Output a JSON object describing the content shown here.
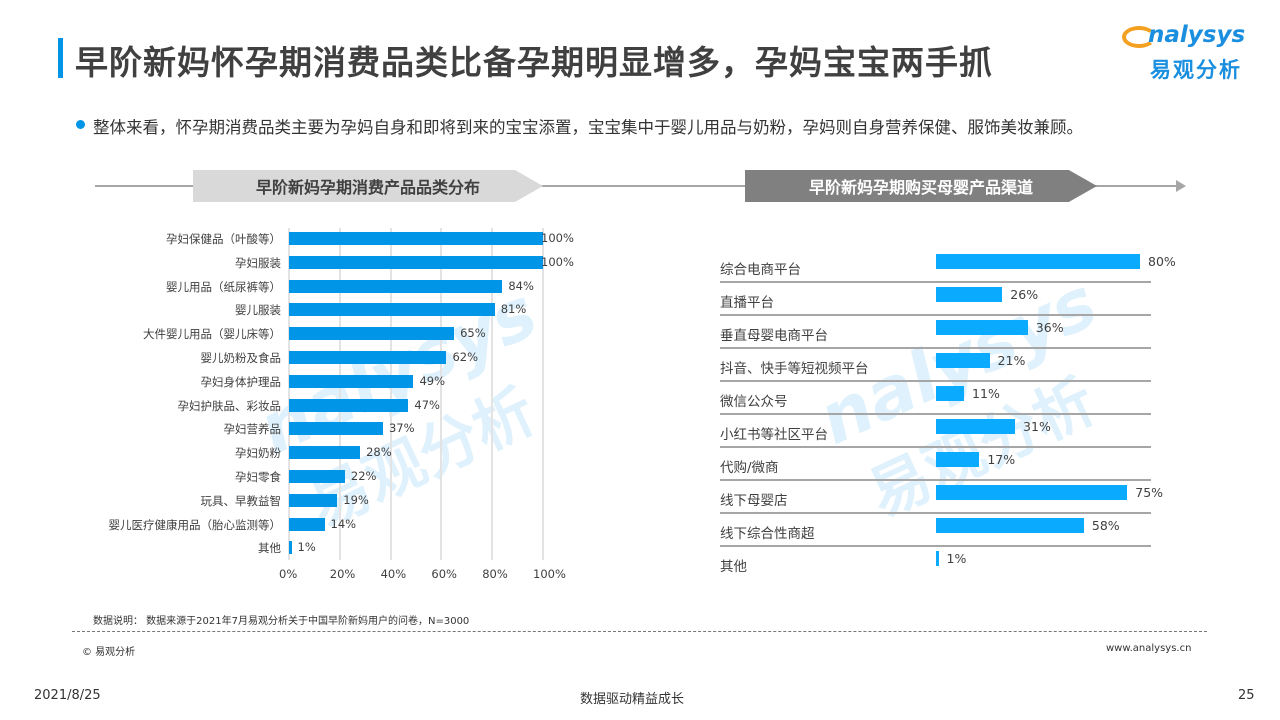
{
  "title": "早阶新妈怀孕期消费品类比备孕期明显增多，孕妈宝宝两手抓",
  "logo": {
    "en": "nalysys",
    "cn": "易观分析"
  },
  "summary": "整体来看，怀孕期消费品类主要为孕妈自身和即将到来的宝宝添置，宝宝集中于婴儿用品与奶粉，孕妈则自身营养保健、服饰美妆兼顾。",
  "watermark": {
    "en": "nalysys",
    "cn": "易观分析"
  },
  "chart_data": [
    {
      "type": "bar",
      "orientation": "horizontal",
      "title": "早阶新妈孕期消费产品品类分布",
      "color": "#0095e6",
      "categories": [
        "孕妇保健品（叶酸等）",
        "孕妇服装",
        "婴儿用品（纸尿裤等）",
        "婴儿服装",
        "大件婴儿用品（婴儿床等）",
        "婴儿奶粉及食品",
        "孕妇身体护理品",
        "孕妇护肤品、彩妆品",
        "孕妇营养品",
        "孕妇奶粉",
        "孕妇零食",
        "玩具、早教益智",
        "婴儿医疗健康用品（胎心监测等）",
        "其他"
      ],
      "values": [
        100,
        100,
        84,
        81,
        65,
        62,
        49,
        47,
        37,
        28,
        22,
        19,
        14,
        1
      ],
      "labels": [
        "100%",
        "100%",
        "84%",
        "81%",
        "65%",
        "62%",
        "49%",
        "47%",
        "37%",
        "28%",
        "22%",
        "19%",
        "14%",
        "1%"
      ],
      "xlim": [
        0,
        100
      ],
      "xticks": [
        "0%",
        "20%",
        "40%",
        "60%",
        "80%",
        "100%"
      ],
      "grid": true
    },
    {
      "type": "bar",
      "orientation": "horizontal",
      "title": "早阶新妈孕期购买母婴产品渠道",
      "color": "#0aabff",
      "categories": [
        "综合电商平台",
        "直播平台",
        "垂直母婴电商平台",
        "抖音、快手等短视频平台",
        "微信公众号",
        "小红书等社区平台",
        "代购/微商",
        "线下母婴店",
        "线下综合性商超",
        "其他"
      ],
      "values": [
        80,
        26,
        36,
        21,
        11,
        31,
        17,
        75,
        58,
        1
      ],
      "labels": [
        "80%",
        "26%",
        "36%",
        "21%",
        "11%",
        "31%",
        "17%",
        "75%",
        "58%",
        "1%"
      ],
      "xlim": [
        0,
        100
      ]
    }
  ],
  "footer": {
    "note": "数据说明： 数据来源于2021年7月易观分析关于中国早阶新妈用户的问卷，N=3000",
    "copyright": "© 易观分析",
    "url": "www.analysys.cn",
    "date": "2021/8/25",
    "slogan": "数据驱动精益成长",
    "page": "25"
  }
}
